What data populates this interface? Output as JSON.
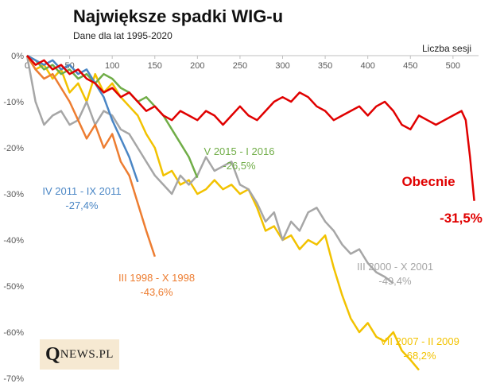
{
  "title": "Największe spadki WIG-u",
  "subtitle": "Dane dla lat 1995-2020",
  "logo": {
    "initial": "Q",
    "rest": "NEWS.PL"
  },
  "chart_data": {
    "type": "line",
    "title": "Największe spadki WIG-u",
    "subtitle": "Dane dla lat 1995-2020",
    "xlabel": "Liczba sesji",
    "ylabel": "",
    "xlim": [
      0,
      530
    ],
    "ylim": [
      -70,
      0
    ],
    "x_ticks": [
      "0",
      "50",
      "100",
      "150",
      "200",
      "250",
      "300",
      "350",
      "400",
      "450",
      "500"
    ],
    "y_ticks": [
      "0%",
      "-10%",
      "-20%",
      "-30%",
      "-40%",
      "-50%",
      "-60%",
      "-70%"
    ],
    "grid": "none",
    "series": [
      {
        "name": "VII 2007 - II 2009",
        "label": "VII 2007 - II 2009",
        "value_label": "-68,2%",
        "color": "#f2c200",
        "x": [
          0,
          10,
          20,
          30,
          40,
          50,
          60,
          70,
          80,
          90,
          100,
          110,
          120,
          130,
          140,
          150,
          160,
          170,
          180,
          190,
          200,
          210,
          220,
          230,
          240,
          250,
          260,
          270,
          280,
          290,
          300,
          310,
          320,
          330,
          340,
          350,
          360,
          370,
          380,
          390,
          400,
          410,
          420,
          430,
          440,
          450,
          460
        ],
        "y": [
          0,
          -3,
          -2,
          -5,
          -3,
          -8,
          -6,
          -10,
          -4,
          -8,
          -6,
          -9,
          -11,
          -13,
          -17,
          -20,
          -26,
          -25,
          -28,
          -27,
          -30,
          -29,
          -27,
          -29,
          -28,
          -30,
          -29,
          -33,
          -38,
          -37,
          -40,
          -39,
          -42,
          -40,
          -41,
          -39,
          -46,
          -52,
          -57,
          -60,
          -58,
          -61,
          -62,
          -60,
          -64,
          -66,
          -68.2
        ]
      },
      {
        "name": "III 2000 - X 2001",
        "label": "III 2000 - X 2001",
        "value_label": "-49,4%",
        "color": "#a6a6a6",
        "x": [
          0,
          10,
          20,
          30,
          40,
          50,
          60,
          70,
          80,
          90,
          100,
          110,
          120,
          130,
          140,
          150,
          160,
          170,
          180,
          190,
          200,
          210,
          220,
          230,
          240,
          250,
          260,
          270,
          280,
          290,
          300,
          310,
          320,
          330,
          340,
          350,
          360,
          370,
          380,
          390,
          400,
          410,
          420,
          430
        ],
        "y": [
          0,
          -10,
          -15,
          -13,
          -12,
          -15,
          -14,
          -10,
          -15,
          -12,
          -13,
          -16,
          -17,
          -20,
          -23,
          -26,
          -28,
          -30,
          -26,
          -28,
          -26,
          -22,
          -25,
          -24,
          -23,
          -28,
          -29,
          -32,
          -36,
          -34,
          -40,
          -36,
          -38,
          -34,
          -33,
          -36,
          -38,
          -41,
          -43,
          -42,
          -45,
          -47,
          -48,
          -49.4
        ]
      },
      {
        "name": "V 2015 - I 2016",
        "label": "V 2015 - I 2016",
        "value_label": "-26,5%",
        "color": "#70ad47",
        "x": [
          0,
          10,
          20,
          30,
          40,
          50,
          60,
          70,
          80,
          90,
          100,
          110,
          120,
          130,
          140,
          150,
          160,
          170,
          180,
          190,
          200
        ],
        "y": [
          0,
          -1,
          -3,
          -2,
          -4,
          -3,
          -5,
          -4,
          -6,
          -4,
          -5,
          -7,
          -8,
          -10,
          -9,
          -11,
          -13,
          -16,
          -19,
          -22,
          -26.5
        ]
      },
      {
        "name": "IV 2011 - IX 2011",
        "label": "IV 2011 - IX 2011",
        "value_label": "-27,4%",
        "color": "#4a86c5",
        "x": [
          0,
          10,
          20,
          30,
          40,
          50,
          60,
          70,
          80,
          90,
          100,
          110,
          120,
          130
        ],
        "y": [
          0,
          -1,
          -2,
          -1,
          -3,
          -2,
          -4,
          -3,
          -6,
          -9,
          -14,
          -18,
          -22,
          -27.4
        ]
      },
      {
        "name": "III 1998 - X 1998",
        "label": "III 1998 - X 1998",
        "value_label": "-43,6%",
        "color": "#ed7d31",
        "x": [
          0,
          10,
          20,
          30,
          40,
          50,
          60,
          70,
          80,
          90,
          100,
          110,
          120,
          130,
          140,
          150
        ],
        "y": [
          0,
          -3,
          -5,
          -4,
          -7,
          -10,
          -14,
          -18,
          -15,
          -20,
          -17,
          -23,
          -26,
          -32,
          -38,
          -43.6
        ]
      },
      {
        "name": "Obecnie",
        "label": "Obecnie",
        "value_label": "-31,5%",
        "color": "#e00000",
        "x": [
          0,
          10,
          20,
          30,
          40,
          50,
          60,
          70,
          80,
          90,
          100,
          110,
          120,
          130,
          140,
          150,
          160,
          170,
          180,
          190,
          200,
          210,
          220,
          230,
          240,
          250,
          260,
          270,
          280,
          290,
          300,
          310,
          320,
          330,
          340,
          350,
          360,
          370,
          380,
          390,
          400,
          410,
          420,
          430,
          440,
          450,
          460,
          470,
          480,
          490,
          500,
          510,
          515,
          520,
          525
        ],
        "y": [
          0,
          -2,
          -1,
          -3,
          -2,
          -4,
          -3,
          -5,
          -6,
          -8,
          -7,
          -9,
          -8,
          -10,
          -12,
          -11,
          -13,
          -14,
          -12,
          -13,
          -14,
          -12,
          -13,
          -15,
          -13,
          -11,
          -13,
          -14,
          -12,
          -10,
          -9,
          -10,
          -8,
          -9,
          -11,
          -12,
          -14,
          -13,
          -12,
          -11,
          -13,
          -11,
          -10,
          -12,
          -15,
          -16,
          -13,
          -14,
          -15,
          -14,
          -13,
          -12,
          -14,
          -22,
          -31.5
        ]
      }
    ]
  }
}
